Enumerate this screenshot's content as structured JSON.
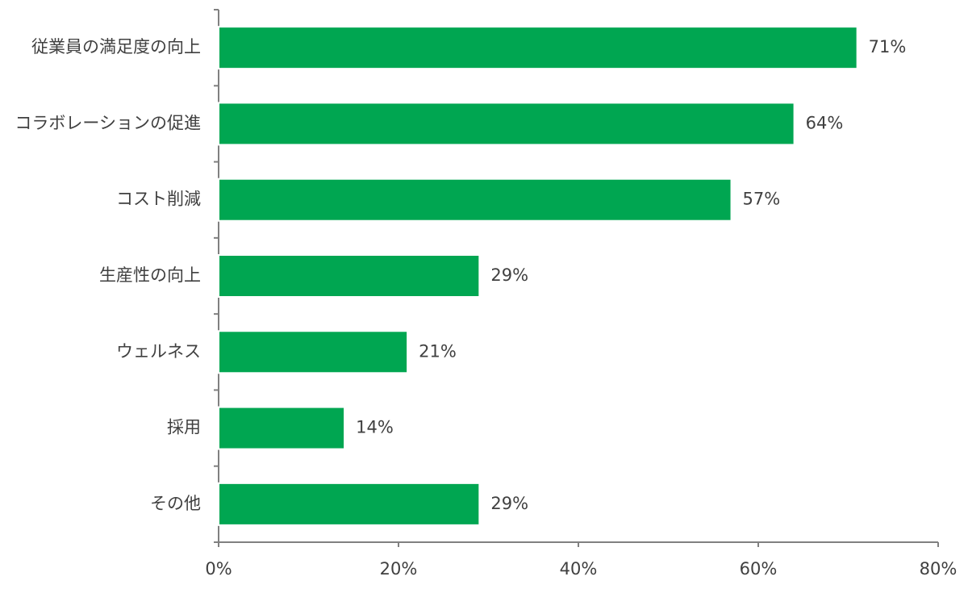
{
  "chart_data": {
    "type": "bar",
    "orientation": "horizontal",
    "categories": [
      "従業員の満足度の向上",
      "コラボレーションの促進",
      "コスト削減",
      "生産性の向上",
      "ウェルネス",
      "採用",
      "その他"
    ],
    "values": [
      71,
      64,
      57,
      29,
      21,
      14,
      29
    ],
    "value_labels": [
      "71%",
      "64%",
      "57%",
      "29%",
      "21%",
      "14%",
      "29%"
    ],
    "color": "#00a651",
    "xlim": [
      0,
      80
    ],
    "xticks": [
      {
        "value": 0,
        "label": "0%"
      },
      {
        "value": 20,
        "label": "20%"
      },
      {
        "value": 40,
        "label": "40%"
      },
      {
        "value": 60,
        "label": "60%"
      },
      {
        "value": 80,
        "label": "80%"
      }
    ],
    "grid": false
  }
}
